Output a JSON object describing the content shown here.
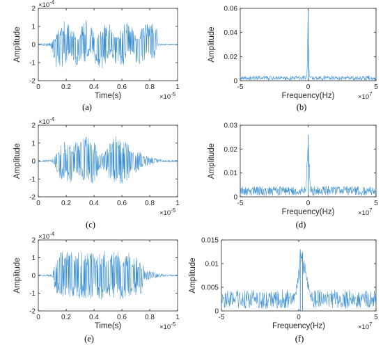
{
  "figure": {
    "captions": [
      "(a)",
      "(b)",
      "(c)",
      "(d)",
      "(e)",
      "(f)"
    ],
    "line_color": "#3b8fd1",
    "axis_color": "#262626"
  },
  "chart_data": [
    {
      "panel": "a",
      "type": "line",
      "title": "",
      "xlabel": "Time(s)",
      "ylabel": "Amplitude",
      "xlim": [
        0,
        1
      ],
      "ylim": [
        -2,
        2
      ],
      "x_multiplier": "×10^-5",
      "y_multiplier": "×10^-4",
      "xticks": [
        "0",
        "0.2",
        "0.4",
        "0.6",
        "0.8",
        "1"
      ],
      "yticks": [
        "-2",
        "-1",
        "0",
        "1",
        "2"
      ],
      "series": [
        {
          "x": [
            0,
            0.05,
            0.09,
            0.12,
            0.15,
            0.18,
            0.2,
            0.22,
            0.25,
            0.28,
            0.3,
            0.32,
            0.35,
            0.38,
            0.4,
            0.42,
            0.45,
            0.48,
            0.5,
            0.52,
            0.55,
            0.58,
            0.6,
            0.62,
            0.65,
            0.68,
            0.7,
            0.72,
            0.75,
            0.78,
            0.8,
            0.83,
            0.85,
            0.86,
            1
          ],
          "upper": [
            0.05,
            0.08,
            0.1,
            0.4,
            1.0,
            1.4,
            1.35,
            1.2,
            0.8,
            0.4,
            0.9,
            1.3,
            1.35,
            1.15,
            0.7,
            0.4,
            0.8,
            1.2,
            1.3,
            1.2,
            0.6,
            0.45,
            1.1,
            1.3,
            1.25,
            0.9,
            0.5,
            0.4,
            1.0,
            1.2,
            1.2,
            1.15,
            1.0,
            0.05,
            0.02
          ],
          "lower": [
            -0.05,
            -0.08,
            -0.1,
            -1.2,
            -1.5,
            -1.3,
            -1.0,
            -0.6,
            -0.9,
            -1.4,
            -1.45,
            -1.35,
            -0.8,
            -0.4,
            -0.9,
            -1.4,
            -1.4,
            -1.3,
            -0.8,
            -0.5,
            -1.0,
            -1.35,
            -1.35,
            -1.1,
            -0.6,
            -0.5,
            -1.1,
            -1.3,
            -1.3,
            -0.8,
            -0.6,
            -0.9,
            -0.8,
            -0.05,
            -0.02
          ]
        }
      ]
    },
    {
      "panel": "b",
      "type": "line",
      "title": "",
      "xlabel": "Frequency(Hz)",
      "ylabel": "Amplitude",
      "xlim": [
        -5,
        5
      ],
      "ylim": [
        0,
        0.06
      ],
      "x_multiplier": "×10^7",
      "xticks": [
        "-5",
        "0",
        "5"
      ],
      "yticks": [
        "0",
        "0.02",
        "0.04",
        "0.06"
      ],
      "series": [
        {
          "noise_floor": 0.0015,
          "noise_peak": 0.004,
          "peaks": [
            {
              "x": 0,
              "y": 0.059,
              "width": 0.06
            }
          ]
        }
      ]
    },
    {
      "panel": "c",
      "type": "line",
      "title": "",
      "xlabel": "",
      "ylabel": "Amplitude",
      "xlim": [
        0,
        1
      ],
      "ylim": [
        -2,
        2
      ],
      "x_multiplier": "×10^-5",
      "y_multiplier": "×10^-4",
      "xticks": [
        "0",
        "0.2",
        "0.4",
        "0.6",
        "0.8",
        "1"
      ],
      "yticks": [
        "-2",
        "-1",
        "0",
        "1",
        "2"
      ],
      "series": [
        {
          "x": [
            0,
            0.05,
            0.1,
            0.13,
            0.16,
            0.2,
            0.24,
            0.28,
            0.32,
            0.36,
            0.4,
            0.44,
            0.48,
            0.52,
            0.56,
            0.6,
            0.64,
            0.68,
            0.72,
            0.75,
            0.8,
            0.85,
            0.9,
            1
          ],
          "upper": [
            0.05,
            0.05,
            0.06,
            0.5,
            1.0,
            1.1,
            0.8,
            1.15,
            1.4,
            1.35,
            1.1,
            0.4,
            0.5,
            1.2,
            1.4,
            1.3,
            1.0,
            0.5,
            0.7,
            0.3,
            0.25,
            0.12,
            0.05,
            0.04
          ],
          "lower": [
            -0.05,
            -0.05,
            -0.06,
            -0.5,
            -1.1,
            -1.2,
            -1.2,
            -0.8,
            -1.2,
            -1.35,
            -1.3,
            -0.5,
            -0.5,
            -1.1,
            -1.4,
            -1.3,
            -1.1,
            -0.6,
            -0.7,
            -0.3,
            -0.25,
            -0.12,
            -0.05,
            -0.04
          ]
        }
      ]
    },
    {
      "panel": "d",
      "type": "line",
      "title": "",
      "xlabel": "Frequency(Hz)",
      "ylabel": "Amplitude",
      "xlim": [
        -5,
        5
      ],
      "ylim": [
        0,
        0.03
      ],
      "x_multiplier": "×10^7",
      "xticks": [
        "-5",
        "0",
        "5"
      ],
      "yticks": [
        "0",
        "0.01",
        "0.02",
        "0.03"
      ],
      "series": [
        {
          "noise_floor": 0.0015,
          "noise_peak": 0.0045,
          "peaks": [
            {
              "x": 0,
              "y": 0.026,
              "width": 0.12
            }
          ]
        }
      ]
    },
    {
      "panel": "e",
      "type": "line",
      "title": "",
      "xlabel": "Time(s)",
      "ylabel": "Amplitude",
      "xlim": [
        0,
        1
      ],
      "ylim": [
        -2,
        2
      ],
      "x_multiplier": "×10^-5",
      "y_multiplier": "×10^-4",
      "xticks": [
        "0",
        "0.2",
        "0.4",
        "0.6",
        "0.8",
        "1"
      ],
      "yticks": [
        "-2",
        "-1",
        "0",
        "1",
        "2"
      ],
      "series": [
        {
          "x": [
            0,
            0.05,
            0.1,
            0.13,
            0.17,
            0.22,
            0.28,
            0.34,
            0.4,
            0.46,
            0.52,
            0.58,
            0.64,
            0.7,
            0.74,
            0.76,
            0.8,
            0.85,
            0.9,
            1
          ],
          "upper": [
            0.05,
            0.05,
            0.06,
            1.0,
            1.4,
            1.4,
            1.3,
            1.4,
            1.3,
            1.35,
            1.4,
            1.35,
            1.3,
            1.2,
            1.1,
            0.3,
            0.25,
            0.12,
            0.05,
            0.04
          ],
          "lower": [
            -0.05,
            -0.05,
            -0.06,
            -1.1,
            -1.3,
            -1.35,
            -1.4,
            -1.3,
            -1.35,
            -1.4,
            -1.3,
            -1.35,
            -1.3,
            -1.2,
            -1.1,
            -0.3,
            -0.25,
            -0.12,
            -0.05,
            -0.04
          ]
        }
      ]
    },
    {
      "panel": "f",
      "type": "line",
      "title": "",
      "xlabel": "Frequency(Hz)",
      "ylabel": "Amplitude",
      "xlim": [
        -5,
        5
      ],
      "ylim": [
        0,
        0.015
      ],
      "x_multiplier": "×10^7",
      "xticks": [
        "-5",
        "0",
        "5"
      ],
      "yticks": [
        "0",
        "0.005",
        "0.01",
        "0.015"
      ],
      "series": [
        {
          "noise_floor": 0.0015,
          "noise_peak": 0.0045,
          "peaks": [
            {
              "x": 0.25,
              "y": 0.0125,
              "width": 0.45
            },
            {
              "x": 0.1,
              "y": 0.013,
              "width": 0.08
            }
          ]
        }
      ]
    }
  ]
}
